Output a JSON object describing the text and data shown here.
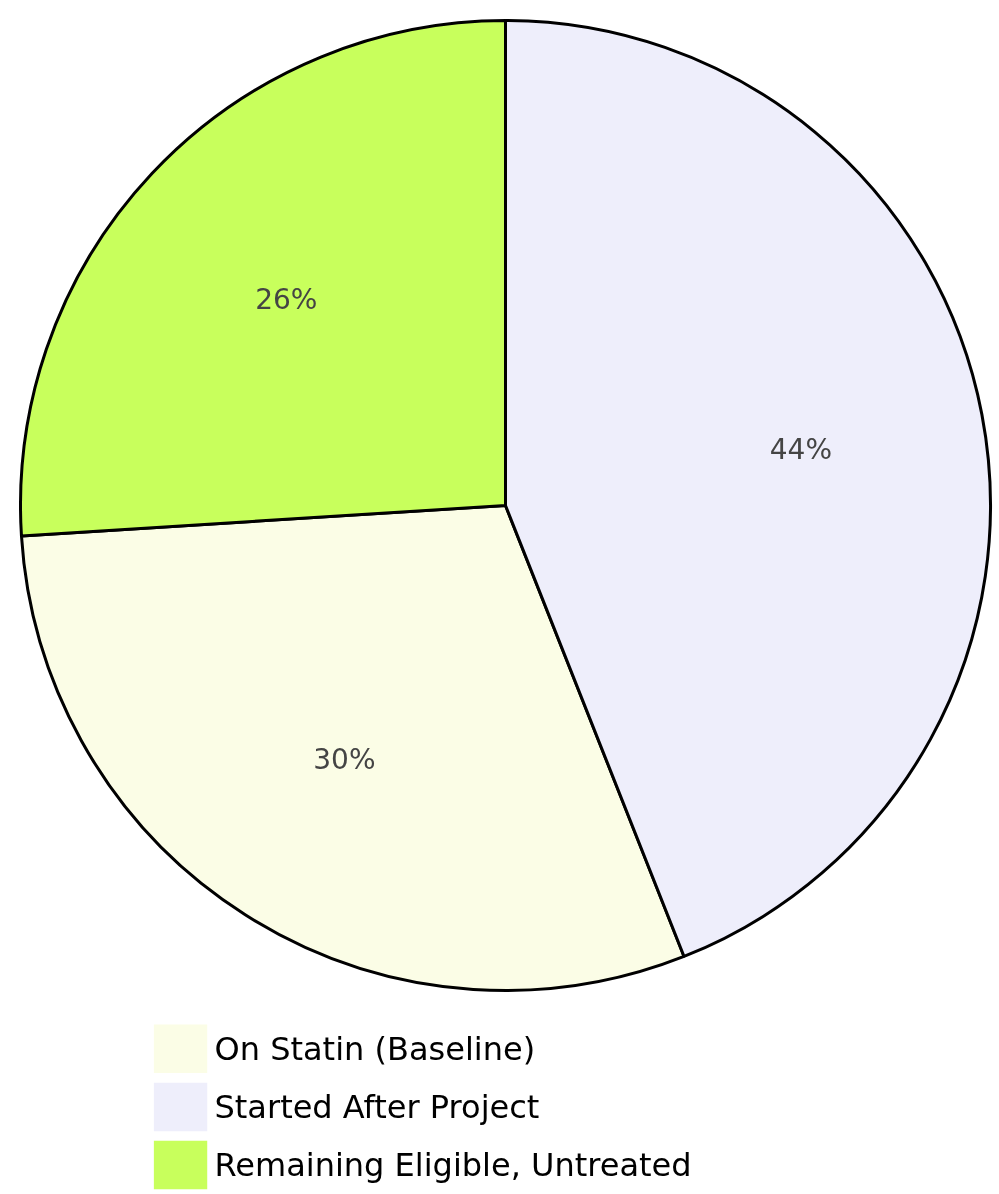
{
  "chart_data": {
    "type": "pie",
    "categories": [
      "On Statin (Baseline)",
      "Started After Project",
      "Remaining Eligible, Untreated"
    ],
    "values": [
      30,
      44,
      26
    ],
    "colors": [
      "#fbfde6",
      "#eeeefb",
      "#c8ff5c"
    ],
    "value_labels": [
      "30%",
      "44%",
      "26%"
    ],
    "legend": "bottom left"
  }
}
